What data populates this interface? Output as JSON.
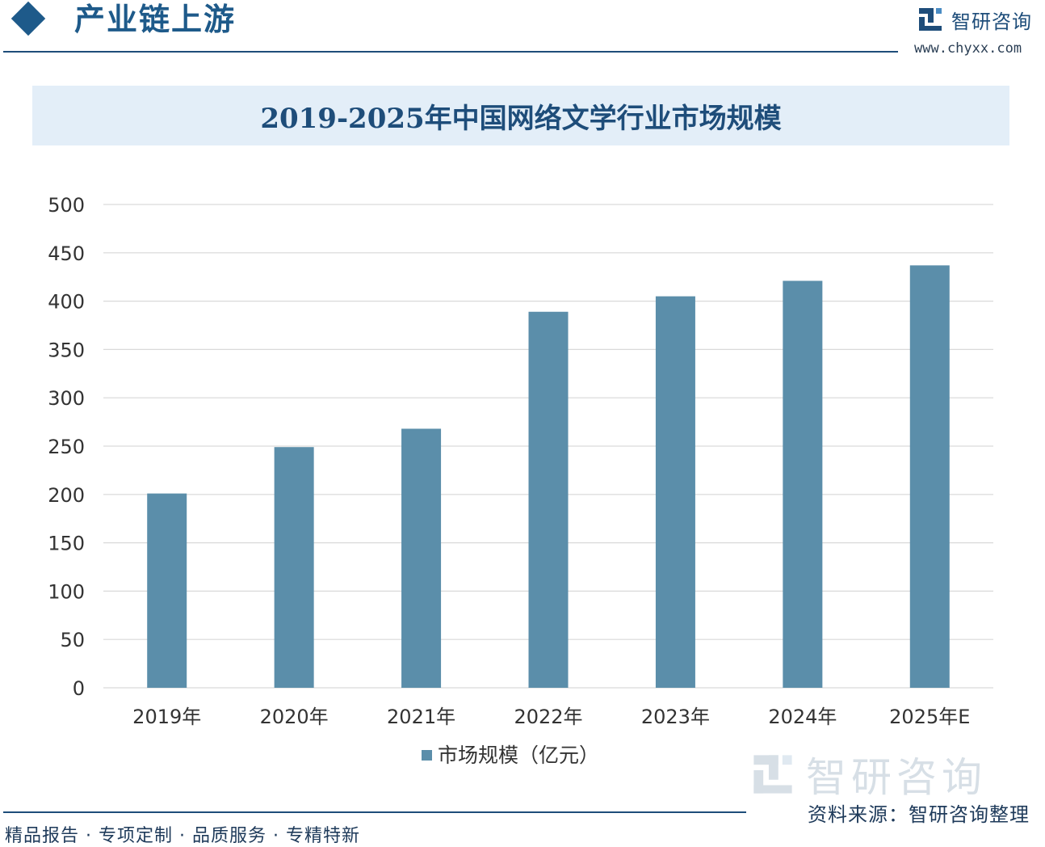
{
  "header": {
    "section_title": "产业链上游",
    "brand_name": "智研咨询",
    "brand_url": "www.chyxx.com",
    "brand_icon": "chyxx-logo-icon"
  },
  "chart_data": {
    "type": "bar",
    "title": "2019-2025年中国网络文学行业市场规模",
    "categories": [
      "2019年",
      "2020年",
      "2021年",
      "2022年",
      "2023年",
      "2024年",
      "2025年E"
    ],
    "series": [
      {
        "name": "市场规模（亿元）",
        "values": [
          201,
          249,
          268,
          389,
          405,
          421,
          437
        ]
      }
    ],
    "ylim": [
      0,
      500
    ],
    "yticks": [
      0,
      50,
      100,
      150,
      200,
      250,
      300,
      350,
      400,
      450,
      500
    ],
    "xlabel": "",
    "ylabel": "",
    "grid": true,
    "legend": "bottom-center",
    "colors": {
      "bar": "#5b8eaa",
      "grid": "#d9d9d9",
      "text": "#333333"
    }
  },
  "footer": {
    "left_text": "精品报告 · 专项定制 · 品质服务 · 专精特新",
    "source_text": "资料来源：智研咨询整理"
  }
}
